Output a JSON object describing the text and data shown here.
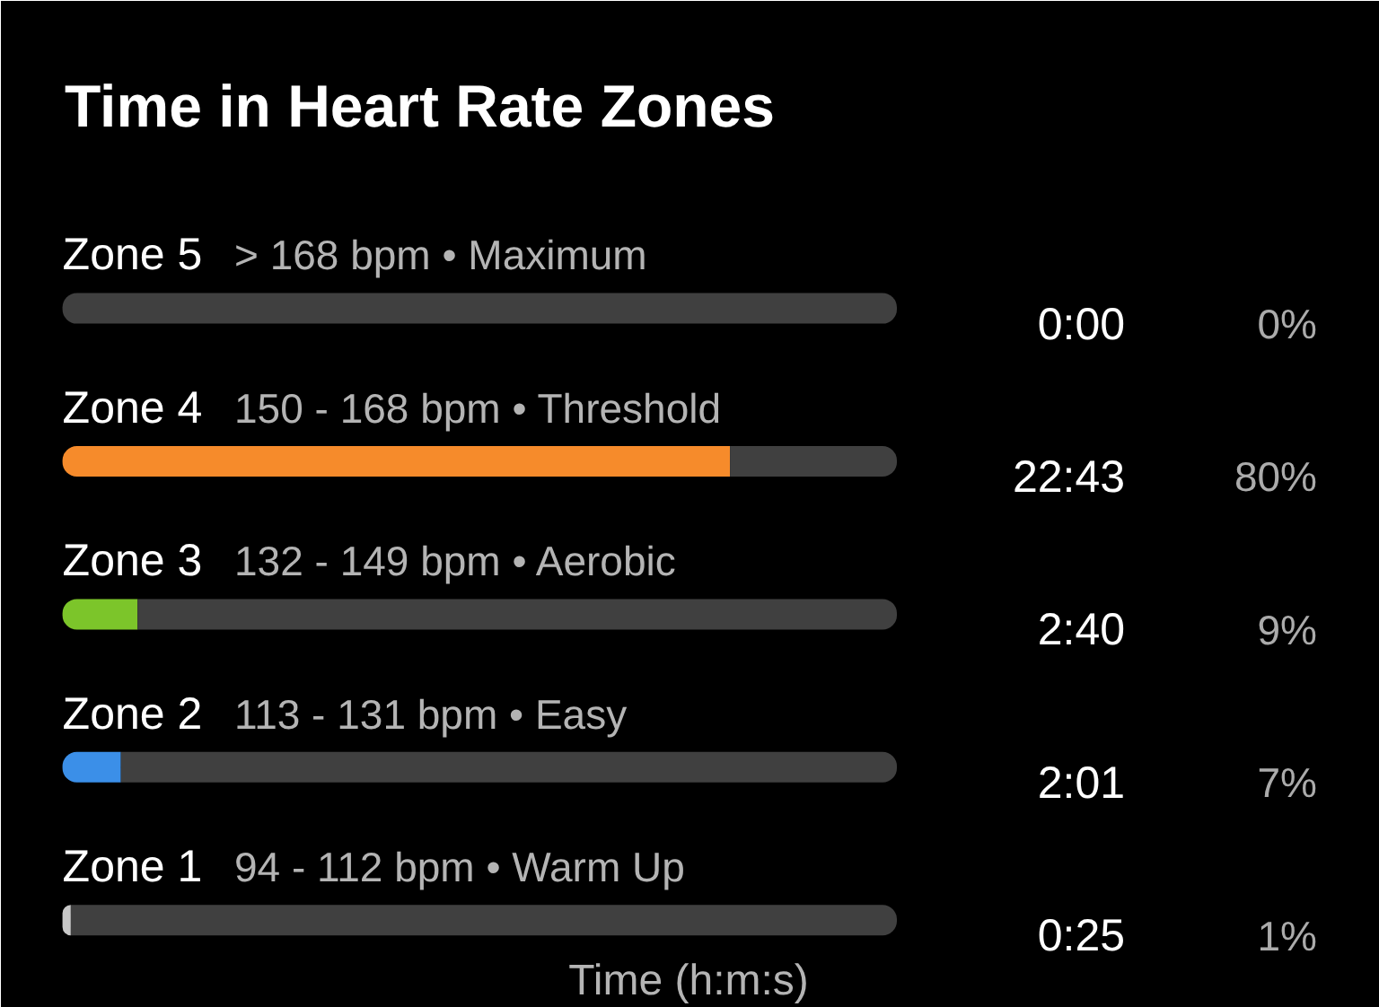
{
  "chart_data": {
    "type": "bar",
    "orientation": "horizontal",
    "stacked": true,
    "title": "Time in Heart Rate Zones",
    "xlabel": "Time (h:m:s)",
    "categories": [
      "Zone 5",
      "Zone 4",
      "Zone 3",
      "Zone 2",
      "Zone 1"
    ],
    "series": [
      {
        "colors": [
          null,
          "#f68b2b",
          "#7cc52a",
          "#3b8fe8",
          "#c8c8c8"
        ],
        "values": [
          0,
          80,
          9,
          7,
          1
        ],
        "value_labels": [
          "0%",
          "80%",
          "9%",
          "7%",
          "1%"
        ]
      },
      {
        "color": "#404040",
        "values": [
          100,
          20,
          91,
          93,
          99
        ]
      }
    ],
    "annotations": [
      "> 168 bpm • Maximum",
      "150 - 168 bpm • Threshold",
      "132 - 149 bpm • Aerobic",
      "113 - 131 bpm • Easy",
      "94 - 112 bpm • Warm Up",
      "0:00",
      "22:43",
      "2:40",
      "2:01",
      "0:25"
    ]
  }
}
